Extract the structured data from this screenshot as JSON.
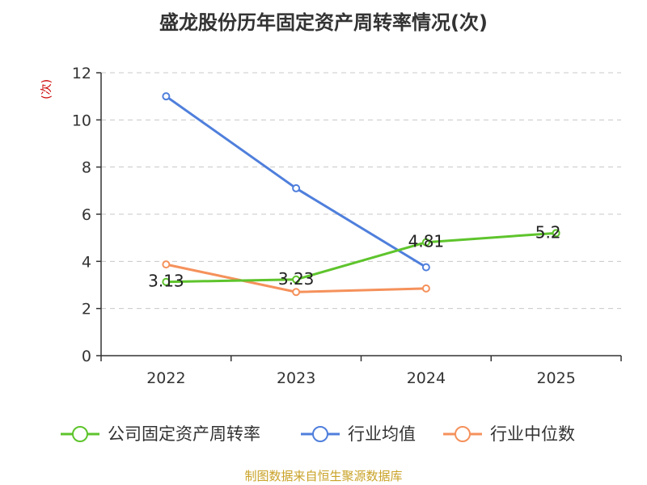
{
  "title": "盛龙股份历年固定资产周转率情况(次)",
  "source": "制图数据来自恒生聚源数据库",
  "chart_data": {
    "type": "line",
    "title": "盛龙股份历年固定资产周转率情况(次)",
    "ylabel": "(次)",
    "xlabel": "",
    "categories": [
      "2022",
      "2023",
      "2024",
      "2025"
    ],
    "ylim": [
      0,
      12
    ],
    "yticks": [
      0,
      2,
      4,
      6,
      8,
      10,
      12
    ],
    "grid": true,
    "legend_position": "bottom",
    "series": [
      {
        "name": "公司固定资产周转率",
        "color": "#5ec42c",
        "values": [
          3.13,
          3.23,
          4.81,
          5.2
        ],
        "labels": [
          "3.13",
          "3.23",
          "4.81",
          "5.2"
        ]
      },
      {
        "name": "行业均值",
        "color": "#4f7fdc",
        "values": [
          11.0,
          7.1,
          3.75,
          null
        ],
        "labels": []
      },
      {
        "name": "行业中位数",
        "color": "#f5915b",
        "values": [
          3.87,
          2.7,
          2.85,
          null
        ],
        "labels": []
      }
    ]
  }
}
